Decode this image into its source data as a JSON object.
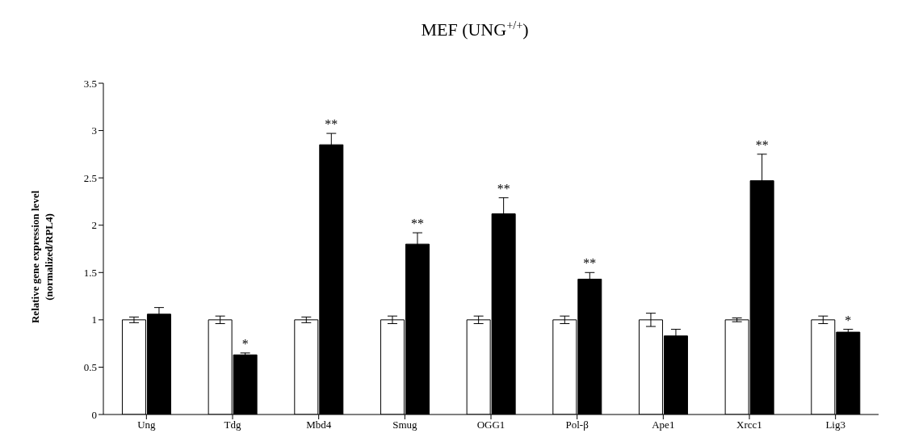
{
  "chart_data": {
    "type": "bar",
    "title": "MEF (UNG$^{+/+}$)",
    "ylabel": "Relative gene expression level\n(normalized/RPL4)",
    "categories": [
      "Ung",
      "Tdg",
      "Mbd4",
      "Smug",
      "OGG1",
      "Pol-β",
      "Ape1",
      "Xrcc1",
      "Lig3"
    ],
    "series": [
      {
        "color": "#ffffff",
        "values": [
          1,
          1,
          1,
          1,
          1,
          1,
          1,
          1,
          1
        ],
        "errors": [
          0.03,
          0.04,
          0.03,
          0.04,
          0.04,
          0.04,
          0.07,
          0.02,
          0.04
        ]
      },
      {
        "color": "#000000",
        "values": [
          1.06,
          0.63,
          2.85,
          1.8,
          2.12,
          1.43,
          0.83,
          2.47,
          0.87
        ],
        "errors": [
          0.07,
          0.02,
          0.12,
          0.12,
          0.17,
          0.07,
          0.07,
          0.28,
          0.03
        ]
      }
    ],
    "annotations": [
      {
        "text": "*",
        "x": "Tdg",
        "y": 0.63
      },
      {
        "text": "**",
        "x": "Mbd4",
        "y": 2.85
      },
      {
        "text": "**",
        "x": "Smug",
        "y": 1.8
      },
      {
        "text": "**",
        "x": "OGG1",
        "y": 2.12
      },
      {
        "text": "**",
        "x": "Pol-β",
        "y": 1.43
      },
      {
        "text": "**",
        "x": "Xrcc1",
        "y": 2.47
      },
      {
        "text": "*",
        "x": "Lig3",
        "y": 0.87
      }
    ],
    "ylim": [
      0,
      3.5
    ],
    "yticks": [
      0,
      0.5,
      1,
      1.5,
      2,
      2.5,
      3,
      3.5
    ],
    "grid": false,
    "legend": false
  }
}
